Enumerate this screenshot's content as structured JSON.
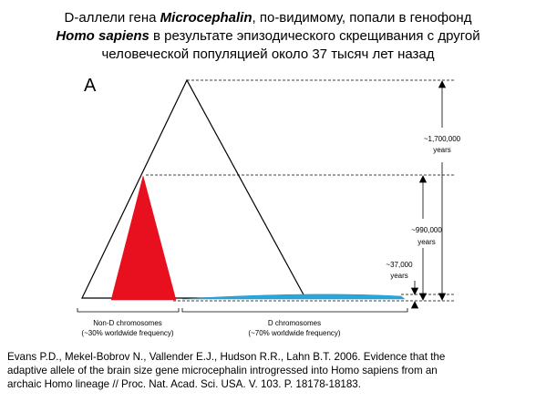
{
  "title": {
    "line1_prefix": "D-аллели гена ",
    "line1_italic": "Microcephalin",
    "line1_suffix": ", по-видимому, попали в генофонд",
    "line2_italic": "Homo sapiens",
    "line2_suffix": " в результате эпизодического скрещивания с другой",
    "line3": "человеческой популяцией около 37 тысяч лет назад"
  },
  "figure": {
    "panel_label": "A",
    "annotations": {
      "t1700_line1": "~1,700,000",
      "t1700_line2": "years",
      "t990_line1": "~990,000",
      "t990_line2": "years",
      "t37_line1": "~37,000",
      "t37_line2": "years"
    },
    "groups": {
      "non_d_line1": "Non-D chromosomes",
      "non_d_line2": "(~30% worldwide frequency)",
      "d_line1": "D chromosomes",
      "d_line2": "(~70% worldwide frequency)"
    },
    "colors": {
      "non_d_triangle": "#e8101e",
      "d_lineage": "#2aa6dc"
    }
  },
  "citation": {
    "line1": "Evans P.D., Mekel-Bobrov N., Vallender E.J., Hudson R.R., Lahn B.T. 2006. Evidence that the",
    "line2": "adaptive allele of the brain size gene microcephalin introgressed into Homo sapiens from an",
    "line3": "archaic Homo lineage // Proc. Nat. Acad. Sci. USA. V. 103. P. 18178-18183."
  }
}
